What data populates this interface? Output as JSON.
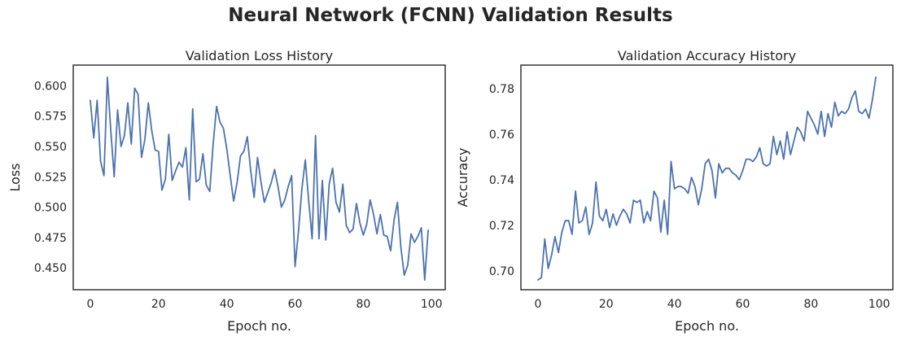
{
  "suptitle": "Neural Network (FCNN) Validation Results",
  "chart_data": [
    {
      "type": "line",
      "title": "Validation Loss History",
      "xlabel": "Epoch no.",
      "ylabel": "Loss",
      "xlim": [
        -5,
        104
      ],
      "ylim": [
        0.432,
        0.617
      ],
      "xticks": [
        0,
        20,
        40,
        60,
        80,
        100
      ],
      "xtick_labels": [
        "0",
        "20",
        "40",
        "60",
        "80",
        "100"
      ],
      "yticks": [
        0.45,
        0.475,
        0.5,
        0.525,
        0.55,
        0.575,
        0.6
      ],
      "ytick_labels": [
        "0.450",
        "0.475",
        "0.500",
        "0.525",
        "0.550",
        "0.575",
        "0.600"
      ],
      "grid": false,
      "color": "#4c72b0",
      "series": [
        {
          "x": [
            0,
            1,
            2,
            3,
            4,
            5,
            6,
            7,
            8,
            9,
            10,
            11,
            12,
            13,
            14,
            15,
            16,
            17,
            18,
            19,
            20,
            21,
            22,
            23,
            24,
            25,
            26,
            27,
            28,
            29,
            30,
            31,
            32,
            33,
            34,
            35,
            36,
            37,
            38,
            39,
            40,
            41,
            42,
            43,
            44,
            45,
            46,
            47,
            48,
            49,
            50,
            51,
            52,
            53,
            54,
            55,
            56,
            57,
            58,
            59,
            60,
            61,
            62,
            63,
            64,
            65,
            66,
            67,
            68,
            69,
            70,
            71,
            72,
            73,
            74,
            75,
            76,
            77,
            78,
            79,
            80,
            81,
            82,
            83,
            84,
            85,
            86,
            87,
            88,
            89,
            90,
            91,
            92,
            93,
            94,
            95,
            96,
            97,
            98,
            99
          ],
          "values": [
            0.588,
            0.557,
            0.588,
            0.538,
            0.526,
            0.607,
            0.563,
            0.525,
            0.58,
            0.55,
            0.559,
            0.586,
            0.552,
            0.598,
            0.593,
            0.541,
            0.556,
            0.586,
            0.563,
            0.547,
            0.546,
            0.514,
            0.523,
            0.56,
            0.522,
            0.53,
            0.537,
            0.533,
            0.549,
            0.506,
            0.581,
            0.521,
            0.523,
            0.544,
            0.518,
            0.513,
            0.552,
            0.583,
            0.57,
            0.565,
            0.548,
            0.526,
            0.505,
            0.52,
            0.542,
            0.546,
            0.558,
            0.53,
            0.508,
            0.541,
            0.521,
            0.504,
            0.512,
            0.52,
            0.531,
            0.517,
            0.5,
            0.506,
            0.517,
            0.526,
            0.451,
            0.48,
            0.515,
            0.539,
            0.505,
            0.474,
            0.559,
            0.474,
            0.522,
            0.473,
            0.519,
            0.532,
            0.504,
            0.496,
            0.519,
            0.485,
            0.479,
            0.482,
            0.503,
            0.487,
            0.477,
            0.486,
            0.506,
            0.494,
            0.478,
            0.494,
            0.477,
            0.476,
            0.464,
            0.489,
            0.504,
            0.467,
            0.444,
            0.452,
            0.478,
            0.471,
            0.476,
            0.483,
            0.44,
            0.481
          ]
        }
      ]
    },
    {
      "type": "line",
      "title": "Validation Accuracy History",
      "xlabel": "Epoch no.",
      "ylabel": "Accuracy",
      "xlim": [
        -5,
        104
      ],
      "ylim": [
        0.6917,
        0.7903
      ],
      "xticks": [
        0,
        20,
        40,
        60,
        80,
        100
      ],
      "xtick_labels": [
        "0",
        "20",
        "40",
        "60",
        "80",
        "100"
      ],
      "yticks": [
        0.7,
        0.72,
        0.74,
        0.76,
        0.78
      ],
      "ytick_labels": [
        "0.70",
        "0.72",
        "0.74",
        "0.76",
        "0.78"
      ],
      "grid": false,
      "color": "#4c72b0",
      "series": [
        {
          "x": [
            0,
            1,
            2,
            3,
            4,
            5,
            6,
            7,
            8,
            9,
            10,
            11,
            12,
            13,
            14,
            15,
            16,
            17,
            18,
            19,
            20,
            21,
            22,
            23,
            24,
            25,
            26,
            27,
            28,
            29,
            30,
            31,
            32,
            33,
            34,
            35,
            36,
            37,
            38,
            39,
            40,
            41,
            42,
            43,
            44,
            45,
            46,
            47,
            48,
            49,
            50,
            51,
            52,
            53,
            54,
            55,
            56,
            57,
            58,
            59,
            60,
            61,
            62,
            63,
            64,
            65,
            66,
            67,
            68,
            69,
            70,
            71,
            72,
            73,
            74,
            75,
            76,
            77,
            78,
            79,
            80,
            81,
            82,
            83,
            84,
            85,
            86,
            87,
            88,
            89,
            90,
            91,
            92,
            93,
            94,
            95,
            96,
            97,
            98,
            99
          ],
          "values": [
            0.696,
            0.697,
            0.714,
            0.701,
            0.707,
            0.715,
            0.708,
            0.717,
            0.722,
            0.722,
            0.716,
            0.735,
            0.721,
            0.722,
            0.728,
            0.716,
            0.721,
            0.739,
            0.724,
            0.722,
            0.727,
            0.719,
            0.725,
            0.72,
            0.724,
            0.727,
            0.725,
            0.721,
            0.731,
            0.73,
            0.731,
            0.721,
            0.726,
            0.722,
            0.735,
            0.732,
            0.717,
            0.731,
            0.716,
            0.748,
            0.736,
            0.737,
            0.737,
            0.736,
            0.734,
            0.741,
            0.737,
            0.729,
            0.736,
            0.747,
            0.749,
            0.744,
            0.732,
            0.747,
            0.743,
            0.745,
            0.745,
            0.743,
            0.742,
            0.74,
            0.744,
            0.749,
            0.749,
            0.748,
            0.75,
            0.754,
            0.747,
            0.746,
            0.747,
            0.759,
            0.751,
            0.757,
            0.749,
            0.761,
            0.751,
            0.757,
            0.763,
            0.761,
            0.757,
            0.77,
            0.767,
            0.764,
            0.76,
            0.77,
            0.759,
            0.769,
            0.763,
            0.774,
            0.768,
            0.77,
            0.769,
            0.771,
            0.776,
            0.779,
            0.77,
            0.769,
            0.771,
            0.767,
            0.775,
            0.785
          ]
        }
      ]
    }
  ]
}
